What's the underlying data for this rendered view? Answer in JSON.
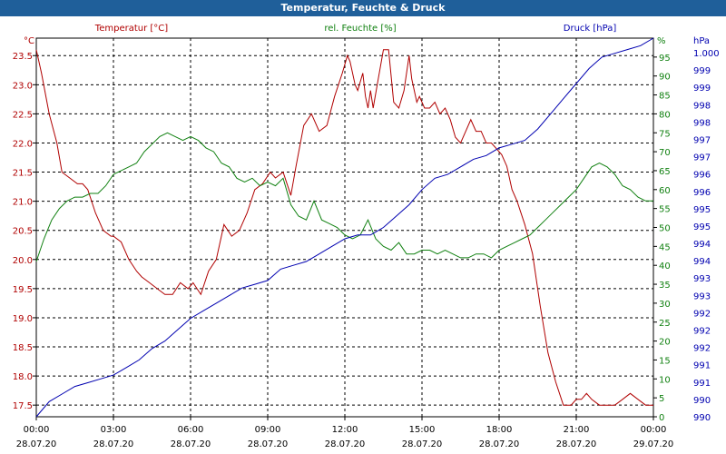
{
  "window": {
    "title": "Temperatur, Feuchte & Druck"
  },
  "colors": {
    "temperature": "#b00000",
    "humidity": "#108010",
    "pressure": "#0000b0",
    "titlebar": "#1f5f9a",
    "grid": "#000000"
  },
  "chart_data": {
    "type": "line",
    "title": "Temperatur, Feuchte & Druck",
    "x_labels": [
      {
        "time": "00:00",
        "date": "28.07.20"
      },
      {
        "time": "03:00",
        "date": "28.07.20"
      },
      {
        "time": "06:00",
        "date": "28.07.20"
      },
      {
        "time": "09:00",
        "date": "28.07.20"
      },
      {
        "time": "12:00",
        "date": "28.07.20"
      },
      {
        "time": "15:00",
        "date": "28.07.20"
      },
      {
        "time": "18:00",
        "date": "28.07.20"
      },
      {
        "time": "21:00",
        "date": "28.07.20"
      },
      {
        "time": "00:00",
        "date": "29.07.20"
      }
    ],
    "x_range_hours": [
      0,
      24
    ],
    "grid": true,
    "axes": {
      "left": {
        "unit": "°C",
        "min": 17.3,
        "max": 23.8,
        "ticks": [
          "17.5",
          "18.0",
          "18.5",
          "19.0",
          "19.5",
          "20.0",
          "20.5",
          "21.0",
          "21.5",
          "22.0",
          "22.5",
          "23.0",
          "23.5"
        ]
      },
      "right1": {
        "unit": "%",
        "min": 0,
        "max": 100,
        "ticks": [
          "0",
          "5",
          "10",
          "15",
          "20",
          "25",
          "30",
          "35",
          "40",
          "45",
          "50",
          "55",
          "60",
          "65",
          "70",
          "75",
          "80",
          "85",
          "90",
          "95"
        ],
        "top_label": "%"
      },
      "right2": {
        "unit": "hPa",
        "min": 990,
        "max": 1000,
        "ticks": [
          "990",
          "990",
          "991",
          "991",
          "992",
          "992",
          "992",
          "993",
          "993",
          "994",
          "994",
          "995",
          "995",
          "996",
          "996",
          "997",
          "997",
          "998",
          "998",
          "999",
          "999",
          "1.000"
        ],
        "top_label": "hPa"
      }
    },
    "series": [
      {
        "name": "Temperatur [°C]",
        "axis": "left",
        "color": "#b00000",
        "x": [
          0,
          0.2,
          0.5,
          0.8,
          1.0,
          1.3,
          1.6,
          1.8,
          2.0,
          2.3,
          2.6,
          2.9,
          3.0,
          3.3,
          3.6,
          3.9,
          4.1,
          4.4,
          4.7,
          5.0,
          5.3,
          5.6,
          5.9,
          6.1,
          6.4,
          6.7,
          7.0,
          7.3,
          7.6,
          7.9,
          8.2,
          8.5,
          8.8,
          9.1,
          9.3,
          9.6,
          9.9,
          10.1,
          10.4,
          10.7,
          11.0,
          11.3,
          11.6,
          11.9,
          12.1,
          12.2,
          12.4,
          12.5,
          12.7,
          12.8,
          12.9,
          13.0,
          13.1,
          13.3,
          13.5,
          13.7,
          13.9,
          14.1,
          14.3,
          14.5,
          14.6,
          14.8,
          14.9,
          15.1,
          15.3,
          15.5,
          15.7,
          15.9,
          16.1,
          16.3,
          16.5,
          16.7,
          16.9,
          17.1,
          17.3,
          17.5,
          17.7,
          17.9,
          18.1,
          18.3,
          18.5,
          18.7,
          19.0,
          19.3,
          19.6,
          19.9,
          20.2,
          20.5,
          20.8,
          21.0,
          21.2,
          21.4,
          21.6,
          21.9,
          22.2,
          22.5,
          22.8,
          23.1,
          23.4,
          23.7,
          24.0
        ],
        "y": [
          23.6,
          23.2,
          22.5,
          22.0,
          21.5,
          21.4,
          21.3,
          21.3,
          21.2,
          20.8,
          20.5,
          20.4,
          20.4,
          20.3,
          20.0,
          19.8,
          19.7,
          19.6,
          19.5,
          19.4,
          19.4,
          19.6,
          19.5,
          19.6,
          19.4,
          19.8,
          20.0,
          20.6,
          20.4,
          20.5,
          20.8,
          21.2,
          21.3,
          21.5,
          21.4,
          21.5,
          21.1,
          21.6,
          22.3,
          22.5,
          22.2,
          22.3,
          22.8,
          23.2,
          23.5,
          23.4,
          23.0,
          22.9,
          23.2,
          22.8,
          22.6,
          22.9,
          22.6,
          23.1,
          23.6,
          23.6,
          22.7,
          22.6,
          22.9,
          23.5,
          23.1,
          22.7,
          22.8,
          22.6,
          22.6,
          22.7,
          22.5,
          22.6,
          22.4,
          22.1,
          22.0,
          22.2,
          22.4,
          22.2,
          22.2,
          22.0,
          22.0,
          21.9,
          21.8,
          21.6,
          21.2,
          21.0,
          20.6,
          20.1,
          19.2,
          18.4,
          17.9,
          17.5,
          17.5,
          17.6,
          17.6,
          17.7,
          17.6,
          17.5,
          17.5,
          17.5,
          17.6,
          17.7,
          17.6,
          17.5,
          17.5
        ]
      },
      {
        "name": "rel. Feuchte [%]",
        "axis": "right1",
        "color": "#108010",
        "x": [
          0,
          0.3,
          0.6,
          0.9,
          1.2,
          1.5,
          1.8,
          2.1,
          2.4,
          2.7,
          3.0,
          3.3,
          3.6,
          3.9,
          4.2,
          4.5,
          4.8,
          5.1,
          5.4,
          5.7,
          6.0,
          6.3,
          6.6,
          6.9,
          7.2,
          7.5,
          7.8,
          8.1,
          8.4,
          8.7,
          9.0,
          9.3,
          9.6,
          9.9,
          10.2,
          10.5,
          10.8,
          11.1,
          11.4,
          11.7,
          12.0,
          12.3,
          12.6,
          12.9,
          13.2,
          13.5,
          13.8,
          14.1,
          14.4,
          14.7,
          15.0,
          15.3,
          15.6,
          15.9,
          16.2,
          16.5,
          16.8,
          17.1,
          17.4,
          17.7,
          18.0,
          18.3,
          18.6,
          18.9,
          19.2,
          19.5,
          19.8,
          20.1,
          20.4,
          20.7,
          21.0,
          21.3,
          21.6,
          21.9,
          22.2,
          22.5,
          22.8,
          23.1,
          23.4,
          23.7,
          24.0
        ],
        "y": [
          41,
          47,
          52,
          55,
          57,
          58,
          58,
          59,
          59,
          61,
          64,
          65,
          66,
          67,
          70,
          72,
          74,
          75,
          74,
          73,
          74,
          73,
          71,
          70,
          67,
          66,
          63,
          62,
          63,
          61,
          62,
          61,
          63,
          56,
          53,
          52,
          57,
          52,
          51,
          50,
          48,
          47,
          48,
          52,
          47,
          45,
          44,
          46,
          43,
          43,
          44,
          44,
          43,
          44,
          43,
          42,
          42,
          43,
          43,
          42,
          44,
          45,
          46,
          47,
          48,
          50,
          52,
          54,
          56,
          58,
          60,
          63,
          66,
          67,
          66,
          64,
          61,
          60,
          58,
          57,
          57
        ]
      },
      {
        "name": "Druck [hPa]",
        "axis": "right2",
        "color": "#0000b0",
        "x": [
          0,
          0.5,
          1.0,
          1.5,
          2.0,
          2.5,
          3.0,
          3.5,
          4.0,
          4.5,
          5.0,
          5.5,
          6.0,
          6.5,
          7.0,
          7.5,
          8.0,
          8.5,
          9.0,
          9.5,
          10.0,
          10.5,
          11.0,
          11.5,
          12.0,
          12.5,
          13.0,
          13.5,
          14.0,
          14.5,
          15.0,
          15.5,
          16.0,
          16.5,
          17.0,
          17.5,
          18.0,
          18.5,
          19.0,
          19.5,
          20.0,
          20.5,
          21.0,
          21.5,
          22.0,
          22.5,
          23.0,
          23.5,
          24.0
        ],
        "y": [
          990.0,
          990.4,
          990.6,
          990.8,
          990.9,
          991.0,
          991.1,
          991.3,
          991.5,
          991.8,
          992.0,
          992.3,
          992.6,
          992.8,
          993.0,
          993.2,
          993.4,
          993.5,
          993.6,
          993.9,
          994.0,
          994.1,
          994.3,
          994.5,
          994.7,
          994.8,
          994.8,
          995.0,
          995.3,
          995.6,
          996.0,
          996.3,
          996.4,
          996.6,
          996.8,
          996.9,
          997.1,
          997.2,
          997.3,
          997.6,
          998.0,
          998.4,
          998.8,
          999.2,
          999.5,
          999.6,
          999.7,
          999.8,
          1000.0
        ]
      }
    ]
  }
}
